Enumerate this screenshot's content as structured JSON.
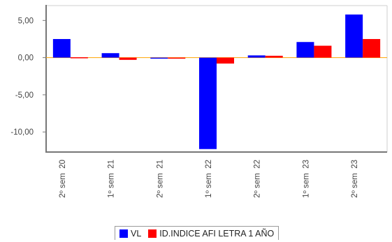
{
  "chart_data": {
    "type": "bar",
    "categories": [
      "2º sem  20",
      "1º sem  21",
      "2º sem  21",
      "1º sem  22",
      "2º sem  22",
      "1º sem  23",
      "2º sem  23"
    ],
    "series": [
      {
        "name": "VL",
        "color": "#0000ff",
        "values": [
          2.5,
          0.6,
          -0.1,
          -12.3,
          0.3,
          2.1,
          5.8
        ]
      },
      {
        "name": "ID.INDICE AFI LETRA 1 AÑO",
        "color": "#ff0000",
        "values": [
          0.05,
          -0.3,
          -0.1,
          -0.8,
          0.25,
          1.6,
          2.5
        ]
      }
    ],
    "yticks": [
      5,
      0,
      -5,
      -10
    ],
    "ytick_labels": [
      "5,00",
      "0,00",
      "-5,00",
      "-10,00"
    ],
    "ylim": [
      -12.7,
      7.0
    ],
    "grid": false,
    "zero_line_color": "#ffa500",
    "legend_position": "bottom"
  }
}
